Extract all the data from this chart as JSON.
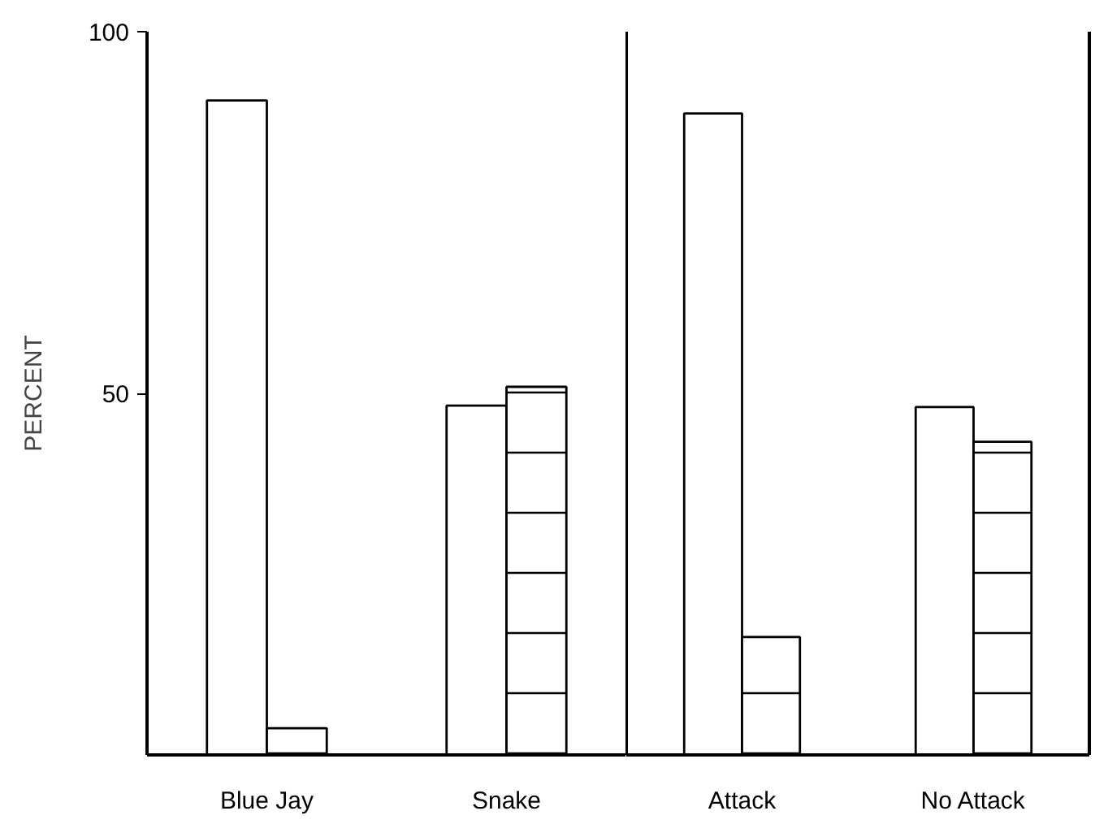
{
  "chart_data": [
    {
      "type": "bar",
      "categories": [
        "Blue Jay",
        "Snake"
      ],
      "ylabel": "PERCENT",
      "ylim": [
        0,
        100
      ],
      "yticks": [
        50,
        100
      ],
      "grid": false,
      "series": [
        {
          "color": "#ffffff",
          "values": [
            90.5,
            48.3
          ]
        },
        {
          "color": "#ffffff",
          "values": [
            3.7,
            50.9
          ]
        }
      ]
    },
    {
      "type": "bar",
      "categories": [
        "Attack",
        "No Attack"
      ],
      "ylim": [
        0,
        100
      ],
      "grid": false,
      "tick_labels": "x",
      "series": [
        {
          "color": "#ffffff",
          "values": [
            88.7,
            48.1
          ]
        },
        {
          "color": "#ffffff",
          "values": [
            16.3,
            43.3
          ]
        }
      ]
    }
  ]
}
